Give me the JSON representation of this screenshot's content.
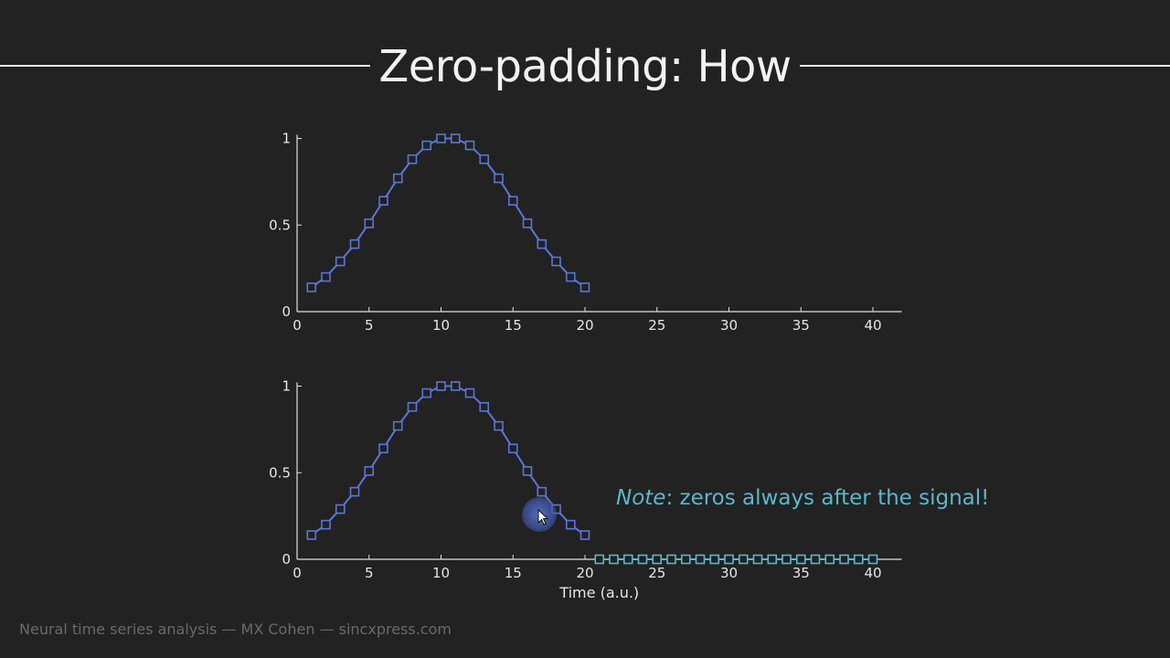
{
  "header": {
    "title": "Zero-padding: How"
  },
  "note": {
    "emph": "Note",
    "text": ": zeros always after the signal!"
  },
  "footer": {
    "credit": "Neural time series analysis — MX Cohen — sincxpress.com"
  },
  "colors": {
    "signal": "#5b76d9",
    "zeros": "#5ab8cc",
    "axis": "#e0e0e0",
    "background": "#222222"
  },
  "chart_data": [
    {
      "type": "line",
      "marker": "square",
      "xlim": [
        0,
        42
      ],
      "ylim": [
        0,
        1
      ],
      "xticks": [
        0,
        5,
        10,
        15,
        20,
        25,
        30,
        35,
        40
      ],
      "yticks": [
        0,
        0.5,
        1
      ],
      "ytick_labels": [
        "0",
        "0.5",
        "1"
      ],
      "xlabel": "",
      "series": [
        {
          "x": [
            1,
            2,
            3,
            4,
            5,
            6,
            7,
            8,
            9,
            10,
            11,
            12,
            13,
            14,
            15,
            16,
            17,
            18,
            19,
            20
          ],
          "y": [
            0.14,
            0.2,
            0.29,
            0.39,
            0.51,
            0.64,
            0.77,
            0.88,
            0.96,
            1.0,
            1.0,
            0.96,
            0.88,
            0.77,
            0.64,
            0.51,
            0.39,
            0.29,
            0.2,
            0.14
          ]
        }
      ]
    },
    {
      "type": "line",
      "marker": "square",
      "xlim": [
        0,
        42
      ],
      "ylim": [
        0,
        1
      ],
      "xticks": [
        0,
        5,
        10,
        15,
        20,
        25,
        30,
        35,
        40
      ],
      "yticks": [
        0,
        0.5,
        1
      ],
      "ytick_labels": [
        "0",
        "0.5",
        "1"
      ],
      "xlabel": "Time (a.u.)",
      "series": [
        {
          "x": [
            1,
            2,
            3,
            4,
            5,
            6,
            7,
            8,
            9,
            10,
            11,
            12,
            13,
            14,
            15,
            16,
            17,
            18,
            19,
            20
          ],
          "y": [
            0.14,
            0.2,
            0.29,
            0.39,
            0.51,
            0.64,
            0.77,
            0.88,
            0.96,
            1.0,
            1.0,
            0.96,
            0.88,
            0.77,
            0.64,
            0.51,
            0.39,
            0.29,
            0.2,
            0.14
          ]
        },
        {
          "x": [
            21,
            22,
            23,
            24,
            25,
            26,
            27,
            28,
            29,
            30,
            31,
            32,
            33,
            34,
            35,
            36,
            37,
            38,
            39,
            40
          ],
          "y": [
            0,
            0,
            0,
            0,
            0,
            0,
            0,
            0,
            0,
            0,
            0,
            0,
            0,
            0,
            0,
            0,
            0,
            0,
            0,
            0
          ],
          "color_key": "zeros"
        }
      ]
    }
  ]
}
